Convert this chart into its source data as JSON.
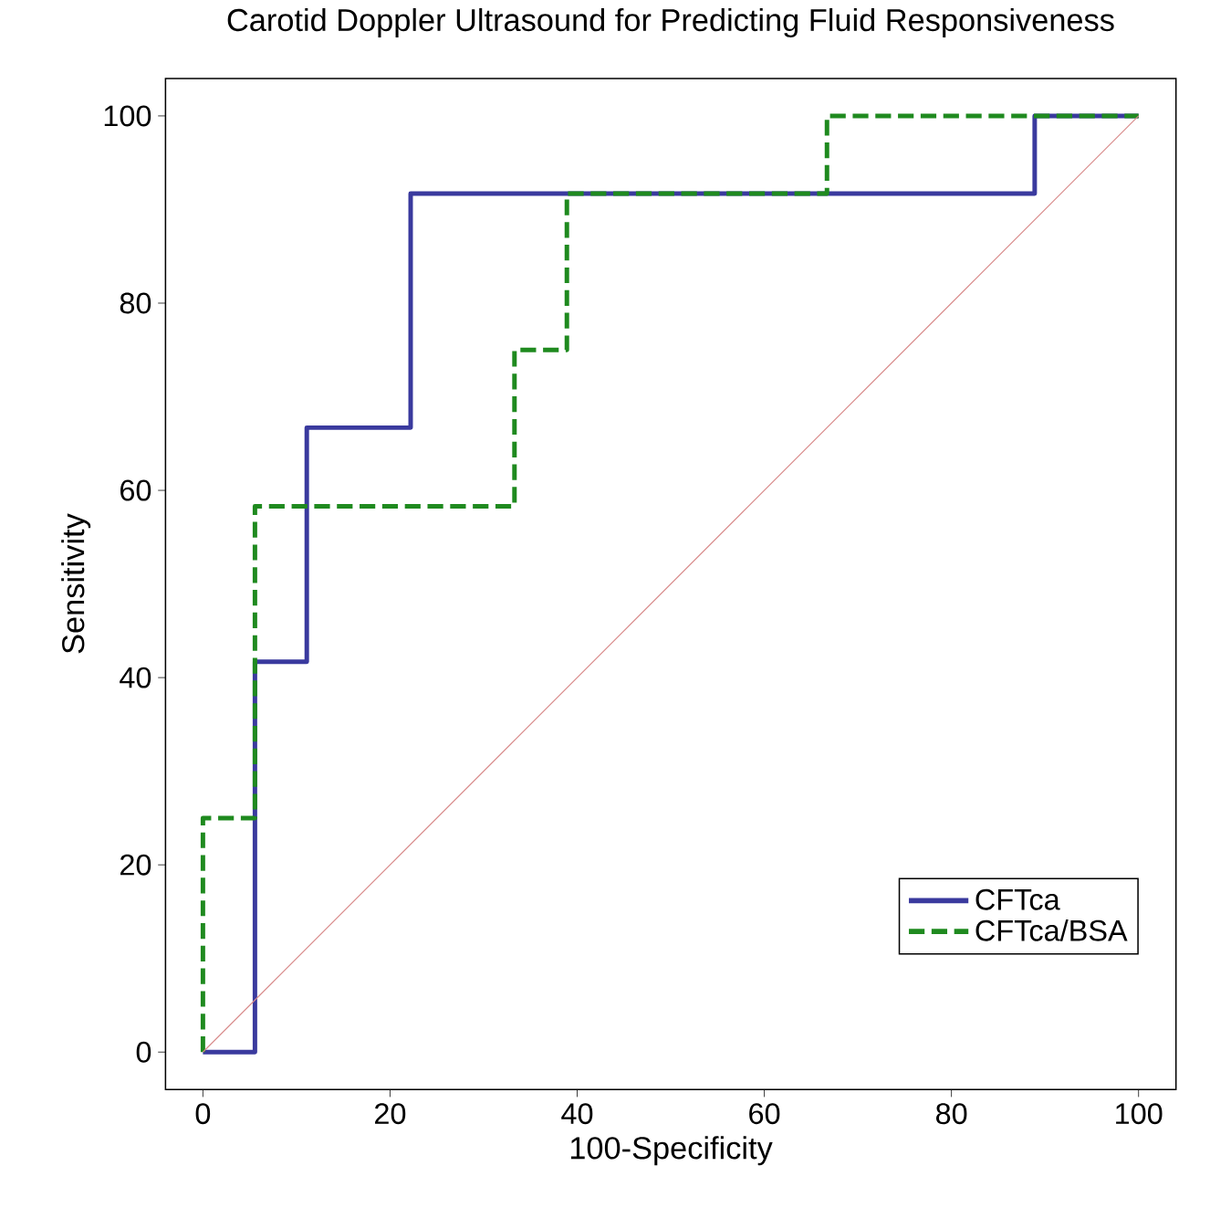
{
  "chart_data": {
    "type": "line",
    "title": "Carotid Doppler Ultrasound for Predicting Fluid Responsiveness",
    "xlabel": "100-Specificity",
    "ylabel": "Sensitivity",
    "xlim": [
      -4,
      104
    ],
    "ylim": [
      -4,
      104
    ],
    "xticks": [
      0,
      20,
      40,
      60,
      80,
      100
    ],
    "yticks": [
      0,
      20,
      40,
      60,
      80,
      100
    ],
    "grid": false,
    "legend": "bottom right",
    "series": [
      {
        "name": "CFTca",
        "color": "#3a3a9e",
        "line_style": "solid",
        "x": [
          0,
          5.56,
          5.56,
          11.1,
          11.1,
          22.2,
          22.2,
          88.9,
          88.9,
          100
        ],
        "values": [
          0,
          0,
          41.7,
          41.7,
          66.7,
          66.7,
          91.7,
          91.7,
          100,
          100
        ]
      },
      {
        "name": "CFTca/BSA",
        "color": "#1f8a1f",
        "line_style": "dashed",
        "x": [
          0,
          0,
          5.56,
          5.56,
          33.3,
          33.3,
          38.9,
          38.9,
          66.7,
          66.7,
          100
        ],
        "values": [
          0,
          25,
          25,
          58.3,
          58.3,
          75,
          75,
          91.7,
          91.7,
          100,
          100
        ]
      },
      {
        "color": "#d88a8a",
        "line_style": "solid",
        "x": [
          0,
          100
        ],
        "values": [
          0,
          100
        ]
      }
    ]
  }
}
